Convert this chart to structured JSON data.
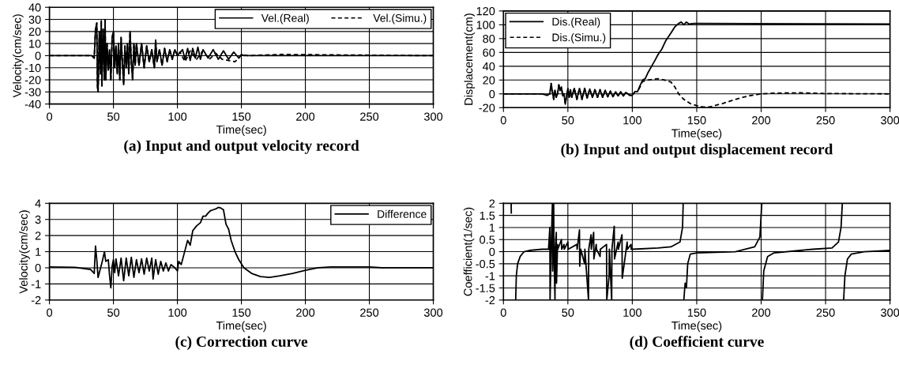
{
  "chart_data": [
    {
      "type": "line",
      "title": "(a) Input and output velocity record",
      "xlabel": "Time(sec)",
      "ylabel": "Velocity(cm/sec)",
      "xlim": [
        0,
        300
      ],
      "xticks": [
        0,
        50,
        100,
        150,
        200,
        250,
        300
      ],
      "ylim": [
        -40,
        40
      ],
      "yticks": [
        -40,
        -30,
        -20,
        -10,
        0,
        10,
        20,
        30,
        40
      ],
      "grid": true,
      "legend": "top right",
      "series": [
        {
          "name": "Vel.(Real)",
          "color": "#000000",
          "line_style": "solid",
          "x": [
            0,
            33,
            35,
            36,
            37,
            37.5,
            38,
            39,
            40,
            40.5,
            41,
            42,
            43,
            43.5,
            44,
            45,
            46,
            47,
            48,
            49,
            50,
            51,
            52,
            53,
            54,
            55,
            56,
            57,
            58,
            59,
            60,
            61,
            62,
            63,
            64,
            65,
            66,
            67,
            68,
            70,
            72,
            74,
            76,
            78,
            80,
            82,
            83,
            84,
            86,
            88,
            90,
            92,
            94,
            96,
            98,
            100,
            104,
            106,
            108,
            110,
            112,
            114,
            116,
            118,
            120,
            124,
            128,
            132,
            136,
            140,
            144,
            148,
            150,
            152,
            300
          ],
          "values": [
            0,
            0,
            -2,
            22,
            27,
            -25,
            -30,
            20,
            -15,
            29,
            -25,
            22,
            -20,
            30,
            -20,
            10,
            -12,
            5,
            -20,
            15,
            20,
            -10,
            8,
            -15,
            10,
            -20,
            15,
            -5,
            -24,
            8,
            -10,
            10,
            -15,
            20,
            -5,
            -20,
            10,
            -8,
            10,
            -8,
            10,
            -10,
            8,
            -5,
            5,
            -10,
            13,
            -5,
            5,
            -8,
            6,
            -5,
            5,
            -3,
            5,
            0,
            5,
            -3,
            6,
            -4,
            6,
            -2,
            7,
            -3,
            5,
            -2,
            5,
            -3,
            4,
            -3,
            3,
            -2,
            1,
            0,
            0
          ]
        },
        {
          "name": "Vel.(Simu.)",
          "color": "#000000",
          "line_style": "dashed",
          "x": [
            0,
            33,
            35,
            36,
            37,
            37.5,
            38,
            39,
            40,
            40.5,
            41,
            42,
            43,
            43.5,
            44,
            45,
            46,
            47,
            48,
            49,
            50,
            51,
            52,
            53,
            54,
            55,
            56,
            57,
            58,
            59,
            60,
            61,
            62,
            63,
            64,
            65,
            66,
            67,
            68,
            70,
            72,
            74,
            76,
            78,
            80,
            82,
            83,
            84,
            86,
            88,
            90,
            92,
            94,
            96,
            98,
            100,
            102,
            106,
            110,
            115,
            120,
            125,
            130,
            135,
            140,
            145,
            148,
            150,
            155,
            180,
            300
          ],
          "values": [
            0,
            0,
            -2,
            22,
            27,
            -25,
            -30,
            20,
            -15,
            29,
            -25,
            22,
            -20,
            30,
            -20,
            10,
            -12,
            5,
            -20,
            15,
            20,
            -10,
            8,
            -15,
            10,
            -20,
            15,
            -5,
            -24,
            8,
            -10,
            10,
            -15,
            20,
            -5,
            -20,
            10,
            -8,
            10,
            -8,
            10,
            -10,
            8,
            -5,
            5,
            -10,
            13,
            -5,
            5,
            -8,
            6,
            -5,
            5,
            -3,
            5,
            0,
            3,
            -5,
            4,
            -3,
            4,
            -3,
            2,
            -3,
            -4,
            -5,
            -2,
            1,
            0,
            1,
            0
          ]
        }
      ]
    },
    {
      "type": "line",
      "title": "(b) Input and output displacement record",
      "xlabel": "Time(sec)",
      "ylabel": "Displacement(cm)",
      "xlim": [
        0,
        300
      ],
      "xticks": [
        0,
        50,
        100,
        150,
        200,
        250,
        300
      ],
      "ylim": [
        -20,
        120
      ],
      "yticks": [
        -20,
        0,
        20,
        40,
        60,
        80,
        100,
        120
      ],
      "grid": true,
      "legend": "top left",
      "series": [
        {
          "name": "Dis.(Real)",
          "color": "#000000",
          "line_style": "solid",
          "x": [
            0,
            30,
            34,
            36,
            37,
            38,
            39,
            40,
            41,
            42,
            43,
            44,
            45,
            46,
            47,
            48,
            49,
            50,
            51,
            52,
            53,
            55,
            57,
            59,
            61,
            63,
            65,
            67,
            69,
            71,
            73,
            75,
            77,
            79,
            81,
            83,
            85,
            87,
            89,
            91,
            93,
            95,
            98,
            100,
            102,
            104,
            106,
            108,
            110,
            112,
            115,
            118,
            120,
            123,
            126,
            130,
            133,
            136,
            138,
            140,
            142,
            144,
            148,
            150,
            300
          ],
          "values": [
            0,
            0,
            -2,
            0,
            15,
            3,
            -8,
            5,
            -5,
            0,
            13,
            5,
            10,
            -3,
            0,
            -15,
            -3,
            8,
            -5,
            6,
            -5,
            8,
            -8,
            8,
            -8,
            8,
            -6,
            7,
            -5,
            6,
            -5,
            6,
            -5,
            5,
            -4,
            4,
            -4,
            3,
            -3,
            3,
            -3,
            2,
            -2,
            -2,
            3,
            3,
            12,
            20,
            22,
            30,
            40,
            50,
            57,
            65,
            77,
            88,
            97,
            102,
            104,
            100,
            104,
            101,
            102,
            102,
            101
          ]
        },
        {
          "name": "Dis.(Simu.)",
          "color": "#000000",
          "line_style": "dashed",
          "x": [
            0,
            30,
            34,
            36,
            37,
            38,
            39,
            40,
            41,
            42,
            43,
            44,
            45,
            46,
            47,
            48,
            49,
            50,
            51,
            52,
            53,
            55,
            57,
            59,
            61,
            63,
            65,
            67,
            69,
            71,
            73,
            75,
            77,
            79,
            81,
            83,
            85,
            87,
            89,
            91,
            93,
            95,
            98,
            100,
            102,
            104,
            106,
            108,
            112,
            116,
            120,
            125,
            130,
            133,
            136,
            140,
            145,
            150,
            155,
            160,
            170,
            180,
            190,
            200,
            210,
            230,
            250,
            300
          ],
          "values": [
            0,
            0,
            -2,
            0,
            15,
            3,
            -8,
            5,
            -5,
            0,
            13,
            5,
            10,
            -3,
            0,
            -15,
            -3,
            8,
            -5,
            6,
            -5,
            8,
            -8,
            8,
            -8,
            8,
            -6,
            7,
            -5,
            6,
            -5,
            6,
            -5,
            5,
            -4,
            4,
            -4,
            3,
            -3,
            3,
            -3,
            2,
            -2,
            -2,
            3,
            3,
            10,
            18,
            20,
            21,
            22,
            20,
            17,
            10,
            0,
            -8,
            -14,
            -17,
            -19,
            -19,
            -14,
            -8,
            -3,
            0,
            1,
            1.5,
            0.5,
            0
          ]
        }
      ]
    },
    {
      "type": "line",
      "title": "(c) Correction curve",
      "xlabel": "Time(sec)",
      "ylabel": "Velocity(cm/sec)",
      "xlim": [
        0,
        300
      ],
      "xticks": [
        0,
        50,
        100,
        150,
        200,
        250,
        300
      ],
      "ylim": [
        -2,
        4
      ],
      "yticks": [
        -2,
        -1,
        0,
        1,
        2,
        3,
        4
      ],
      "grid": true,
      "legend": "top right",
      "series": [
        {
          "name": "Difference",
          "color": "#000000",
          "line_style": "solid",
          "x": [
            0,
            20,
            32,
            35,
            36,
            37,
            38,
            39,
            41,
            43,
            44,
            46,
            47,
            48,
            49,
            50,
            51,
            52,
            54,
            56,
            58,
            60,
            62,
            64,
            66,
            68,
            70,
            72,
            74,
            76,
            78,
            80,
            81,
            83,
            85,
            87,
            89,
            91,
            93,
            95,
            98,
            100,
            101,
            103,
            105,
            107,
            108,
            110,
            112,
            115,
            118,
            120,
            122,
            124,
            126,
            128,
            130,
            132,
            134,
            136,
            138,
            140,
            142,
            145,
            148,
            152,
            158,
            165,
            172,
            180,
            190,
            200,
            210,
            220,
            250,
            260,
            300
          ],
          "values": [
            0.05,
            0.03,
            -0.1,
            -0.35,
            1.35,
            0.5,
            -0.6,
            -0.3,
            0.3,
            1.0,
            0.4,
            0.5,
            -0.5,
            -1.25,
            0.1,
            0.5,
            -0.3,
            0.55,
            -0.5,
            0.6,
            -0.8,
            0.6,
            -0.5,
            0.65,
            -0.6,
            0.5,
            -0.3,
            0.55,
            -0.4,
            0.6,
            -0.2,
            0.6,
            -0.7,
            0.5,
            -0.4,
            0.4,
            -0.2,
            0.3,
            -0.2,
            0.2,
            0,
            -0.2,
            0.4,
            0.2,
            0.8,
            1.4,
            1.7,
            1.4,
            2.3,
            2.6,
            2.8,
            3.2,
            3.2,
            3.4,
            3.55,
            3.6,
            3.65,
            3.75,
            3.7,
            3.6,
            2.7,
            2.4,
            1.7,
            1.0,
            0.5,
            0.0,
            -0.35,
            -0.55,
            -0.6,
            -0.5,
            -0.35,
            -0.15,
            0,
            0.05,
            0.05,
            0,
            0
          ]
        }
      ]
    },
    {
      "type": "line",
      "title": "(d) Coefficient curve",
      "xlabel": "Time(sec)",
      "ylabel": "Coefficient(1/sec)",
      "xlim": [
        0,
        300
      ],
      "xticks": [
        0,
        50,
        100,
        150,
        200,
        250,
        300
      ],
      "ylim": [
        -2,
        2
      ],
      "yticks": [
        -2,
        -1.5,
        -1,
        -0.5,
        0,
        0.5,
        1,
        1.5,
        2
      ],
      "grid": true,
      "series": [
        {
          "color": "#000000",
          "line_style": "solid",
          "x": [
            6,
            6.1,
            6.2,
            9.5,
            10,
            11,
            13,
            16,
            20,
            30,
            35,
            36,
            36.2,
            37,
            38,
            38.2,
            39,
            39.2,
            40,
            40.2,
            41,
            41.2,
            42,
            42.2,
            45,
            45.2,
            47,
            47.2,
            50,
            50.2,
            57,
            57.2,
            59,
            59.2,
            60,
            63,
            63.2,
            66,
            66.2,
            68,
            68.2,
            70,
            70.2,
            72,
            72.2,
            75,
            75.2,
            80,
            80.2,
            82,
            82.2,
            84,
            84.2,
            86,
            86.2,
            89,
            89.2,
            92,
            92.2,
            96,
            96.2,
            99,
            99.2,
            100,
            120,
            130,
            137,
            139,
            139.5,
            139.6,
            140,
            141,
            142,
            143,
            145,
            150,
            180,
            195,
            199,
            200.5,
            200.6,
            201,
            202,
            205,
            210,
            240,
            255,
            260,
            262,
            263,
            263.1,
            264,
            265,
            267,
            270,
            280,
            300
          ],
          "values": [
            2,
            1.6,
            null,
            -2,
            -1,
            -0.5,
            -0.2,
            0,
            0.05,
            0.1,
            0.1,
            1.0,
            -2,
            0.1,
            2,
            -0.8,
            2,
            0.1,
            -2,
            0.1,
            0.8,
            -1.3,
            0.3,
            0.1,
            0.5,
            0.1,
            0.3,
            0.1,
            0.4,
            0.1,
            0.3,
            0.1,
            0.9,
            -0.6,
            0.1,
            -0.5,
            0.1,
            -2,
            0.1,
            0.7,
            0.1,
            0.8,
            -0.3,
            0.3,
            0.1,
            -0.2,
            0.1,
            0.3,
            -2,
            -1,
            0.1,
            -2,
            0.1,
            1.05,
            -0.3,
            0.4,
            0.1,
            0.7,
            -1.1,
            0.4,
            0.1,
            0.3,
            0.1,
            0.1,
            0.15,
            0.2,
            0.4,
            1,
            2,
            null,
            -2,
            -1.3,
            -1.5,
            -0.5,
            -0.1,
            -0.05,
            0,
            0.2,
            0.6,
            2,
            null,
            -2,
            -0.8,
            -0.2,
            -0.05,
            0.1,
            0.15,
            0.4,
            1,
            2,
            null,
            -2,
            -1,
            -0.3,
            -0.1,
            0,
            0.05
          ]
        }
      ]
    }
  ]
}
